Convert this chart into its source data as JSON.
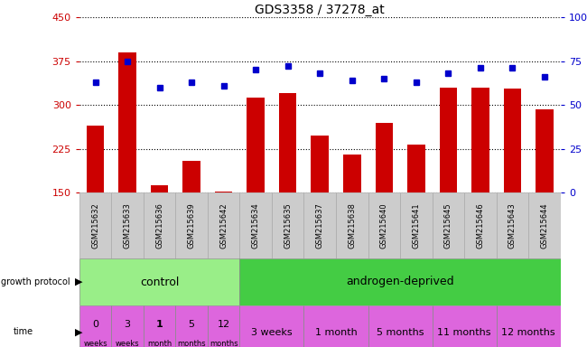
{
  "title": "GDS3358 / 37278_at",
  "samples": [
    "GSM215632",
    "GSM215633",
    "GSM215636",
    "GSM215639",
    "GSM215642",
    "GSM215634",
    "GSM215635",
    "GSM215637",
    "GSM215638",
    "GSM215640",
    "GSM215641",
    "GSM215645",
    "GSM215646",
    "GSM215643",
    "GSM215644"
  ],
  "counts": [
    265,
    390,
    162,
    205,
    152,
    312,
    320,
    248,
    215,
    270,
    232,
    330,
    330,
    328,
    293
  ],
  "percentiles": [
    63,
    75,
    60,
    63,
    61,
    70,
    72,
    68,
    64,
    65,
    63,
    68,
    71,
    71,
    66
  ],
  "ylim_left": [
    150,
    450
  ],
  "ylim_right": [
    0,
    100
  ],
  "yticks_left": [
    150,
    225,
    300,
    375,
    450
  ],
  "yticks_right": [
    0,
    25,
    50,
    75,
    100
  ],
  "bar_color": "#cc0000",
  "dot_color": "#0000cc",
  "bg_color": "#ffffff",
  "control_color": "#99ee88",
  "androgen_color": "#44cc44",
  "time_color": "#dd66dd",
  "control_times_line1": [
    "0",
    "3",
    "1",
    "5",
    "12"
  ],
  "control_times_line2": [
    "weeks",
    "weeks",
    "month",
    "months",
    "months"
  ],
  "androgen_times": [
    "3 weeks",
    "1 month",
    "5 months",
    "11 months",
    "12 months"
  ]
}
